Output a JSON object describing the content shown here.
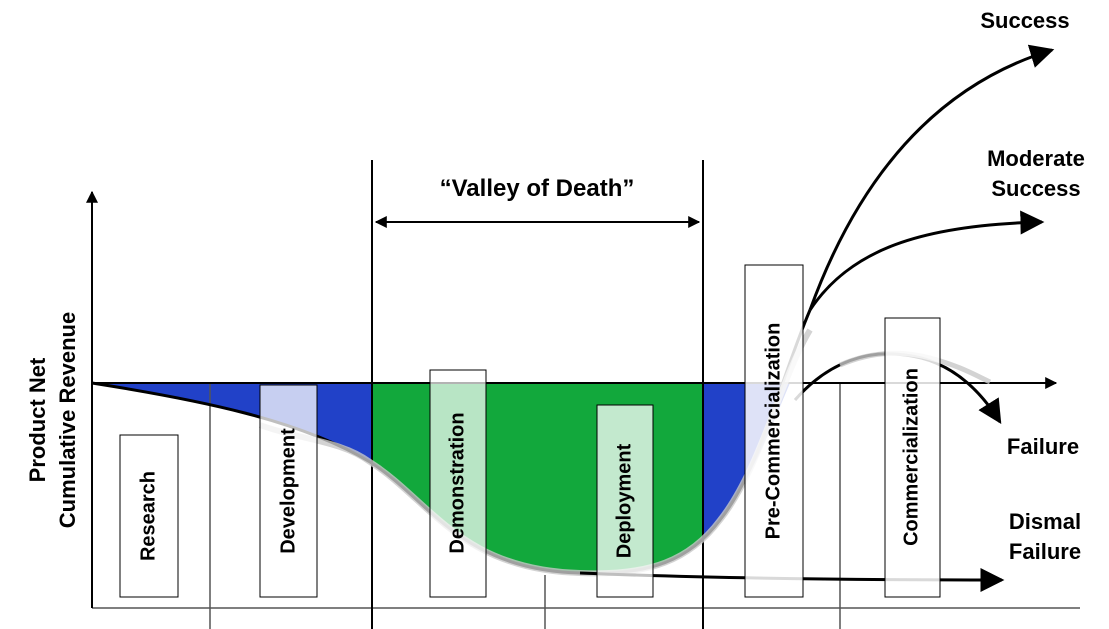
{
  "y_axis_label": [
    "Product Net",
    "Cumulative Revenue"
  ],
  "valley_label": "“Valley of Death”",
  "outcomes": {
    "success": [
      "Success"
    ],
    "moderate_success": [
      "Moderate",
      "Success"
    ],
    "failure": [
      "Failure"
    ],
    "dismal_failure": [
      "Dismal",
      "Failure"
    ]
  },
  "stages": [
    "Research",
    "Development",
    "Demonstration",
    "Deployment",
    "Pre-Commercialization",
    "Commercialization"
  ]
}
